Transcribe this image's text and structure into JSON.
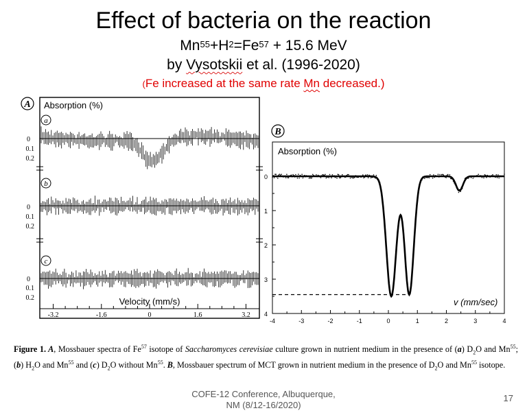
{
  "slide": {
    "title": "Effect of bacteria on the reaction",
    "equation": {
      "mn": "Mn",
      "mn_mass": "55",
      "plus_h": "+H",
      "h_mass": "2",
      "eq_fe": "=Fe",
      "fe_mass": "57",
      "energy": " + 15.6 MeV"
    },
    "byline": {
      "prefix": "by ",
      "author": "Vysotskii",
      "suffix": " et al. (1996-2020)"
    },
    "note": {
      "open": "(",
      "part1": "Fe increased at the same rate ",
      "mn": "Mn",
      "part2": " decreased.)"
    },
    "footer_line1": "COFE-12 Conference, Albuquerque,",
    "footer_line2": "NM (8/12-16/2020)",
    "page_number": "17"
  },
  "panel_a": {
    "label": "A",
    "ylabel": "Absorption (%)",
    "xlabel": "Velocity (mm/s)",
    "subplots": [
      {
        "label": "a",
        "ticks": [
          "0",
          "0.1",
          "0.2"
        ]
      },
      {
        "label": "b",
        "ticks": [
          "0",
          "0.1",
          "0.2"
        ]
      },
      {
        "label": "c",
        "ticks": [
          "0",
          "0.1",
          "0.2"
        ]
      }
    ],
    "xticks": [
      "-3.2",
      "-1.6",
      "0",
      "1.6",
      "3.2"
    ]
  },
  "panel_b": {
    "label": "B",
    "ylabel": "Absorption (%)",
    "xlabel": "v (mm/sec)",
    "yticks": [
      "0",
      "1",
      "2",
      "3",
      "4"
    ],
    "xticks": [
      "-4",
      "-3",
      "-2",
      "-1",
      "0",
      "1",
      "2",
      "3",
      "4"
    ]
  },
  "chart_data": [
    {
      "type": "scatter",
      "title": "A — Mossbauer spectra of Fe57 in Saccharomyces cerevisiae",
      "xlabel": "Velocity (mm/s)",
      "ylabel": "Absorption (%)",
      "xlim": [
        -3.6,
        3.6
      ],
      "ylim": [
        0,
        0.25
      ],
      "series": [
        {
          "name": "a: D2O and Mn55",
          "dip_center": 0.1,
          "dip_depth": 0.12,
          "dip_width": 0.5
        },
        {
          "name": "b: H2O and Mn55",
          "dip_center": 0,
          "dip_depth": 0,
          "dip_width": 0
        },
        {
          "name": "c: D2O without Mn55",
          "dip_center": 0,
          "dip_depth": 0,
          "dip_width": 0
        }
      ]
    },
    {
      "type": "line",
      "title": "B — Mossbauer spectrum of MCT",
      "xlabel": "v (mm/sec)",
      "ylabel": "Absorption (%)",
      "xlim": [
        -4,
        4
      ],
      "ylim": [
        0,
        4
      ],
      "peaks": [
        {
          "center": 0.1,
          "depth": 3.5
        },
        {
          "center": 0.72,
          "depth": 3.45
        },
        {
          "center": 2.45,
          "depth": 0.42
        }
      ],
      "reference_line": 3.45
    }
  ],
  "caption": {
    "fig": "Figure 1.",
    "t1": " A",
    "t2": ", Mossbauer spectra of Fe",
    "fe_mass": "57",
    "t3": " isotope of ",
    "species": "Saccharomyces cerevisiae",
    "t4": " culture grown in nutrient medium in the presence of (",
    "ia": "a",
    "t5": ") D",
    "s2a": "2",
    "t6": "O and Mn",
    "mn1": "55",
    "t7": "; (",
    "ib": "b",
    "t8": ") H",
    "s2b": "2",
    "t9": "O and Mn",
    "mn2": "55",
    "t10": " and (",
    "ic": "c",
    "t11": ") D",
    "s2c": "2",
    "t12": "O without Mn",
    "mn3": "55",
    "t13": ". ",
    "bB": "B",
    "t14": ", Mossbauer spectrum of MCT grown in nutrient medium in the presence of D",
    "s2d": "2",
    "t15": "O and Mn",
    "mn4": "55",
    "t16": " isotope."
  }
}
